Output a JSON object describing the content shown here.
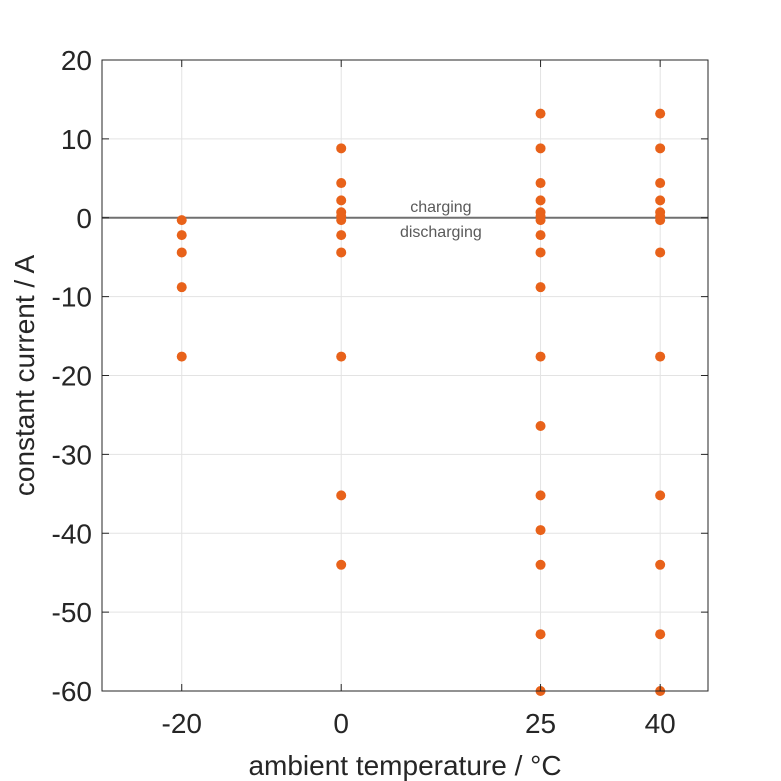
{
  "chart_data": {
    "type": "scatter",
    "xlabel": "ambient temperature / °C",
    "ylabel": "constant current / A",
    "xlim": [
      -30,
      46
    ],
    "ylim": [
      -60,
      20
    ],
    "x_ticks": [
      -20,
      0,
      25,
      40
    ],
    "x_tick_labels": [
      "-20",
      "0",
      "25",
      "40"
    ],
    "y_ticks": [
      20,
      10,
      0,
      -10,
      -20,
      -30,
      -40,
      -50,
      -60
    ],
    "y_tick_labels": [
      "20",
      "10",
      "0",
      "-10",
      "-20",
      "-30",
      "-40",
      "-50",
      "-60"
    ],
    "grid": true,
    "marker_color": "#e8621a",
    "reference_line": {
      "y": 0,
      "color": "#707070"
    },
    "annotations": {
      "above": "charging",
      "below": "discharging",
      "x": 12.5
    },
    "points": [
      {
        "x": -20,
        "y": -0.3
      },
      {
        "x": -20,
        "y": -2.2
      },
      {
        "x": -20,
        "y": -4.4
      },
      {
        "x": -20,
        "y": -8.8
      },
      {
        "x": -20,
        "y": -17.6
      },
      {
        "x": 0,
        "y": 8.8
      },
      {
        "x": 0,
        "y": 4.4
      },
      {
        "x": 0,
        "y": 2.2
      },
      {
        "x": 0,
        "y": 0.7
      },
      {
        "x": 0,
        "y": 0.2
      },
      {
        "x": 0,
        "y": -0.3
      },
      {
        "x": 0,
        "y": -2.2
      },
      {
        "x": 0,
        "y": -4.4
      },
      {
        "x": 0,
        "y": -17.6
      },
      {
        "x": 0,
        "y": -35.2
      },
      {
        "x": 0,
        "y": -44
      },
      {
        "x": 25,
        "y": 13.2
      },
      {
        "x": 25,
        "y": 8.8
      },
      {
        "x": 25,
        "y": 4.4
      },
      {
        "x": 25,
        "y": 2.2
      },
      {
        "x": 25,
        "y": 0.7
      },
      {
        "x": 25,
        "y": 0.2
      },
      {
        "x": 25,
        "y": -0.3
      },
      {
        "x": 25,
        "y": -2.2
      },
      {
        "x": 25,
        "y": -4.4
      },
      {
        "x": 25,
        "y": -8.8
      },
      {
        "x": 25,
        "y": -17.6
      },
      {
        "x": 25,
        "y": -26.4
      },
      {
        "x": 25,
        "y": -35.2
      },
      {
        "x": 25,
        "y": -39.6
      },
      {
        "x": 25,
        "y": -44
      },
      {
        "x": 25,
        "y": -52.8
      },
      {
        "x": 25,
        "y": -60
      },
      {
        "x": 40,
        "y": 13.2
      },
      {
        "x": 40,
        "y": 8.8
      },
      {
        "x": 40,
        "y": 4.4
      },
      {
        "x": 40,
        "y": 2.2
      },
      {
        "x": 40,
        "y": 0.7
      },
      {
        "x": 40,
        "y": 0.2
      },
      {
        "x": 40,
        "y": -0.3
      },
      {
        "x": 40,
        "y": -4.4
      },
      {
        "x": 40,
        "y": -17.6
      },
      {
        "x": 40,
        "y": -35.2
      },
      {
        "x": 40,
        "y": -44
      },
      {
        "x": 40,
        "y": -52.8
      },
      {
        "x": 40,
        "y": -60
      }
    ]
  }
}
